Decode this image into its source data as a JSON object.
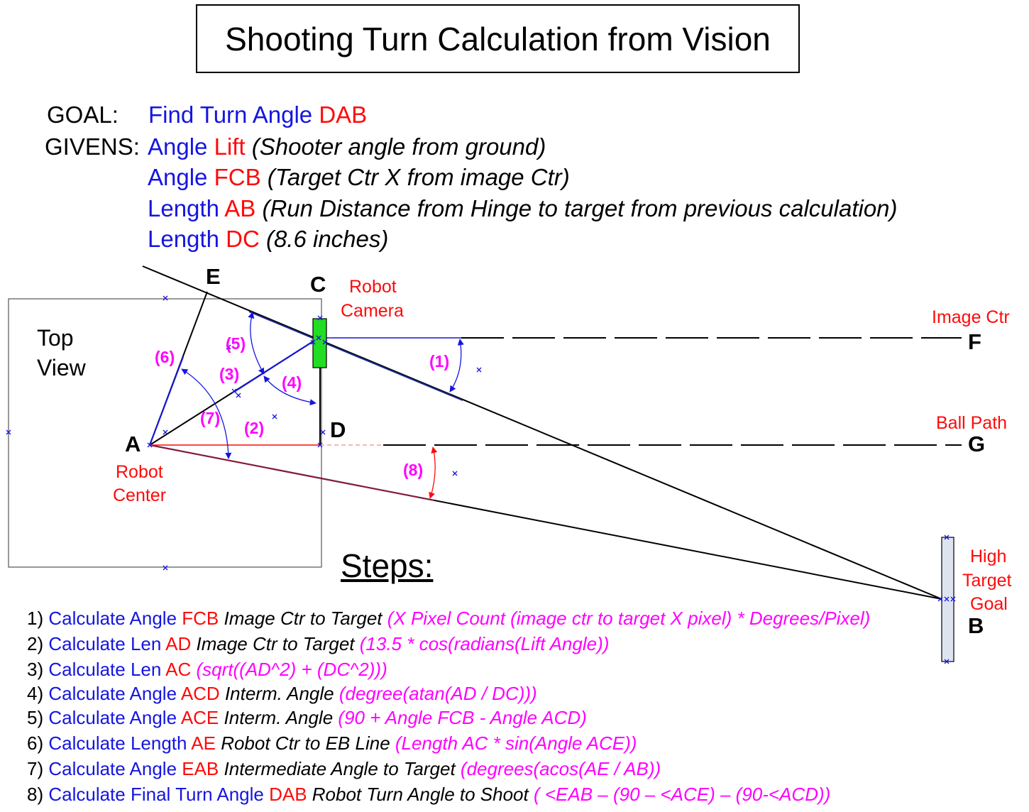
{
  "title": "Shooting Turn Calculation from Vision",
  "goal": {
    "label": "GOAL:",
    "text": "Find Turn Angle ",
    "angle": "DAB"
  },
  "givens_label": "GIVENS:",
  "givens": [
    {
      "kind": "Angle ",
      "name": "Lift",
      "note": " (Shooter angle from ground)"
    },
    {
      "kind": "Angle ",
      "name": "FCB",
      "note": " (Target Ctr X from image Ctr)"
    },
    {
      "kind": "Length ",
      "name": "AB",
      "note": "  (Run Distance from Hinge to target from previous calculation)"
    },
    {
      "kind": "Length ",
      "name": "DC",
      "note": "  (8.6 inches)"
    }
  ],
  "diagram": {
    "top_view": [
      "Top",
      "View"
    ],
    "points": {
      "A": "A",
      "B": "B",
      "C": "C",
      "D": "D",
      "E": "E",
      "F": "F",
      "G": "G"
    },
    "robot_camera": [
      "Robot",
      "Camera"
    ],
    "robot_center": [
      "Robot",
      "Center"
    ],
    "image_ctr": "Image Ctr",
    "ball_path": "Ball Path",
    "high_target_goal": [
      "High",
      "Target",
      "Goal"
    ],
    "angle_labels": [
      "(1)",
      "(2)",
      "(3)",
      "(4)",
      "(5)",
      "(6)",
      "(7)",
      "(8)"
    ],
    "colors": {
      "blue": "#1515e0",
      "red": "#ff0a0a",
      "magenta": "#ff00ff",
      "camera_green": "#22dd22",
      "goal_fill": "#dde4f0"
    }
  },
  "steps_title": "Steps:",
  "steps": [
    {
      "num": "1) ",
      "action": "Calculate Angle ",
      "name": "FCB",
      "desc": " Image Ctr to Target ",
      "formula": "(X Pixel Count (image ctr to target X pixel) * Degrees/Pixel)"
    },
    {
      "num": "2) ",
      "action": "Calculate Len ",
      "name": "AD",
      "desc": " Image Ctr to Target ",
      "formula": "(13.5 * cos(radians(Lift Angle))"
    },
    {
      "num": "3) ",
      "action": "Calculate Len ",
      "name": "AC",
      "desc": " ",
      "formula": "(sqrt((AD^2) + (DC^2)))"
    },
    {
      "num": "4) ",
      "action": "Calculate Angle ",
      "name": "ACD",
      "desc": " Interm. Angle ",
      "formula": "(degree(atan(AD / DC)))"
    },
    {
      "num": "5) ",
      "action": "Calculate Angle ",
      "name": "ACE",
      "desc": " Interm. Angle ",
      "formula": "(90 + Angle FCB - Angle ACD)"
    },
    {
      "num": "6) ",
      "action": "Calculate Length ",
      "name": "AE",
      "desc": " Robot Ctr to EB Line ",
      "formula": "(Length AC * sin(Angle ACE))"
    },
    {
      "num": "7) ",
      "action": "Calculate Angle ",
      "name": "EAB",
      "desc": " Intermediate Angle to Target ",
      "formula": "(degrees(acos(AE / AB))"
    },
    {
      "num": "8) ",
      "action": "Calculate Final Turn Angle ",
      "name": "DAB",
      "desc": " Robot Turn Angle to Shoot ",
      "formula": "( <EAB – (90 – <ACE) – (90-<ACD))"
    }
  ]
}
